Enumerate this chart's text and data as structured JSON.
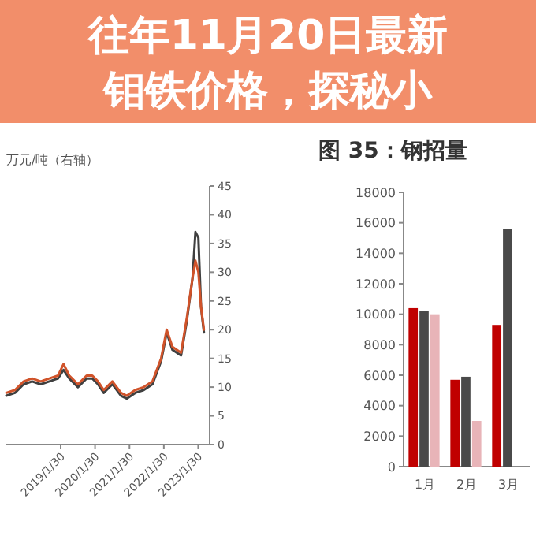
{
  "chart_data": [
    {
      "type": "line",
      "ylabel": "万元/吨（右轴）",
      "xlim": [
        "2017-07-01",
        "2023-06-01"
      ],
      "ylim": [
        0,
        45
      ],
      "yticks": [
        0,
        5,
        10,
        15,
        20,
        25,
        30,
        35,
        40,
        45
      ],
      "xticks": [
        {
          "value": "2019-01-30",
          "label": "2019/1/30"
        },
        {
          "value": "2020-01-30",
          "label": "2020/1/30"
        },
        {
          "value": "2021-01-30",
          "label": "2021/1/30"
        },
        {
          "value": "2022-01-30",
          "label": "2022/1/30"
        },
        {
          "value": "2023-01-30",
          "label": "2023/1/30"
        }
      ],
      "x": [
        "2017-07",
        "2017-10",
        "2018-01",
        "2018-04",
        "2018-07",
        "2018-10",
        "2019-01",
        "2019-03",
        "2019-05",
        "2019-08",
        "2019-11",
        "2020-01",
        "2020-03",
        "2020-05",
        "2020-08",
        "2020-11",
        "2021-01",
        "2021-04",
        "2021-07",
        "2021-10",
        "2022-01",
        "2022-03",
        "2022-05",
        "2022-08",
        "2022-10",
        "2022-12",
        "2023-01",
        "2023-02",
        "2023-03",
        "2023-04"
      ],
      "series": [
        {
          "color": "#404040",
          "values": [
            8.5,
            9,
            10.5,
            11,
            10.5,
            11,
            11.5,
            13,
            11.5,
            10,
            11.5,
            11.5,
            10.5,
            9,
            10.5,
            8.5,
            8,
            9,
            9.5,
            10.5,
            14.5,
            19.5,
            16.5,
            15.5,
            21.5,
            29,
            37,
            36,
            24,
            19.5
          ]
        },
        {
          "color": "#d0532a",
          "values": [
            9,
            9.5,
            11,
            11.5,
            11,
            11.5,
            12,
            14,
            12,
            10.5,
            12,
            12,
            11,
            9.5,
            11,
            9,
            8.5,
            9.5,
            10,
            11,
            15,
            20,
            17,
            16,
            22,
            29,
            32,
            30,
            24,
            20
          ]
        }
      ]
    },
    {
      "type": "bar",
      "title": "图 35：钢招量",
      "categories": [
        "1月",
        "2月",
        "3月"
      ],
      "ylim": [
        0,
        18000
      ],
      "yticks": [
        0,
        2000,
        4000,
        6000,
        8000,
        10000,
        12000,
        14000,
        16000,
        18000
      ],
      "series": [
        {
          "color": "#c00000",
          "values": [
            10400,
            5700,
            9300
          ]
        },
        {
          "color": "#4a4a4a",
          "values": [
            10200,
            5900,
            15600
          ]
        },
        {
          "color": "#e8b4b8",
          "values": [
            10000,
            3000,
            null
          ]
        }
      ]
    },
    {
      "type": "other",
      "title": "往年11月20日最新钼铁价格，探秘小"
    }
  ]
}
